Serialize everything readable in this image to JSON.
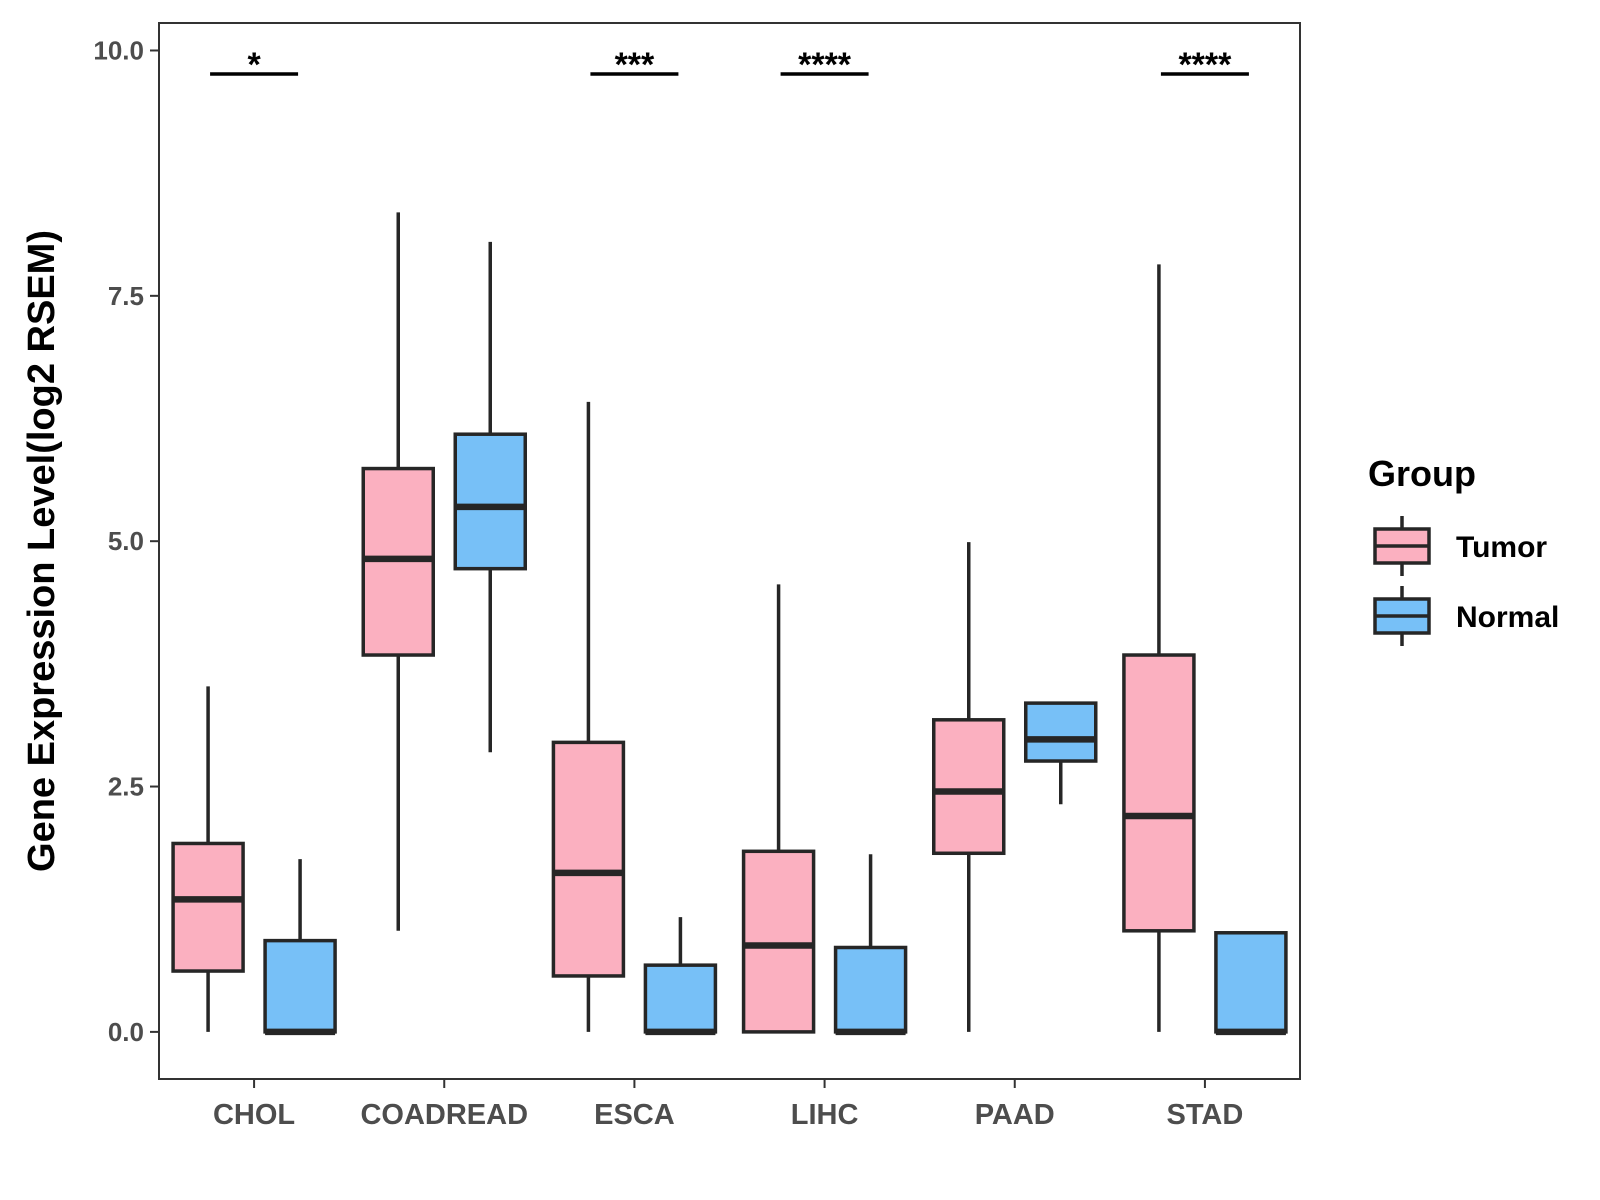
{
  "chart_data": {
    "type": "boxplot",
    "title": "",
    "xlabel": "",
    "ylabel": "Gene Expression Level(log2 RSEM)",
    "ylim": [
      -0.48,
      10.28
    ],
    "yticks": [
      0.0,
      2.5,
      5.0,
      7.5,
      10.0
    ],
    "ytick_labels": [
      "0.0",
      "2.5",
      "5.0",
      "7.5",
      "10.0"
    ],
    "grid": false,
    "legend": {
      "title": "Group",
      "position": "right"
    },
    "categories": [
      "CHOL",
      "COADREAD",
      "ESCA",
      "LIHC",
      "PAAD",
      "STAD"
    ],
    "series": [
      {
        "name": "Tumor",
        "color": "#fbb0c0",
        "boxes": [
          {
            "min": 0.0,
            "q1": 0.62,
            "median": 1.35,
            "q3": 1.92,
            "max": 3.52
          },
          {
            "min": 1.03,
            "q1": 3.84,
            "median": 4.82,
            "q3": 5.74,
            "max": 8.35
          },
          {
            "min": 0.0,
            "q1": 0.57,
            "median": 1.62,
            "q3": 2.95,
            "max": 6.42
          },
          {
            "min": 0.0,
            "q1": 0.0,
            "median": 0.88,
            "q3": 1.84,
            "max": 4.56
          },
          {
            "min": 0.0,
            "q1": 1.82,
            "median": 2.45,
            "q3": 3.18,
            "max": 4.99
          },
          {
            "min": 0.0,
            "q1": 1.03,
            "median": 2.2,
            "q3": 3.84,
            "max": 7.82
          }
        ]
      },
      {
        "name": "Normal",
        "color": "#77c0f7",
        "boxes": [
          {
            "min": 0.0,
            "q1": 0.0,
            "median": 0.0,
            "q3": 0.93,
            "max": 1.76
          },
          {
            "min": 2.85,
            "q1": 4.72,
            "median": 5.35,
            "q3": 6.09,
            "max": 8.05
          },
          {
            "min": 0.0,
            "q1": 0.0,
            "median": 0.0,
            "q3": 0.68,
            "max": 1.17
          },
          {
            "min": 0.0,
            "q1": 0.0,
            "median": 0.0,
            "q3": 0.86,
            "max": 1.81
          },
          {
            "min": 2.32,
            "q1": 2.76,
            "median": 2.98,
            "q3": 3.35,
            "max": 3.35
          },
          {
            "min": 0.0,
            "q1": 0.0,
            "median": 0.0,
            "q3": 1.01,
            "max": 1.01
          }
        ]
      }
    ],
    "significance": [
      {
        "category": "CHOL",
        "label": "*"
      },
      {
        "category": "ESCA",
        "label": "***"
      },
      {
        "category": "LIHC",
        "label": "****"
      },
      {
        "category": "STAD",
        "label": "****"
      }
    ]
  }
}
